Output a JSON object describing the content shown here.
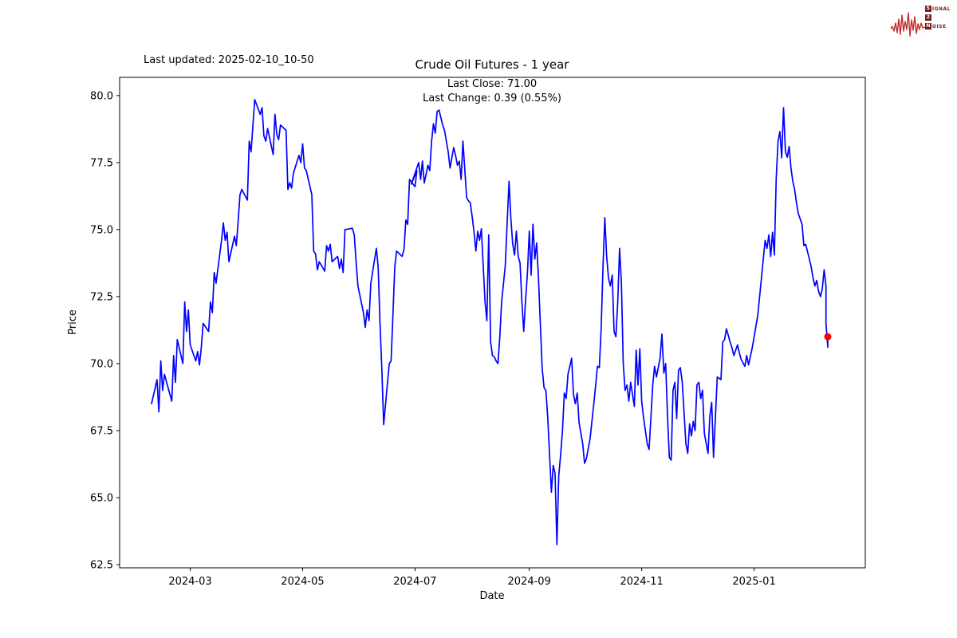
{
  "meta": {
    "last_updated_label": "Last updated: 2025-02-10_10-50"
  },
  "logo": {
    "name": "Signal 2 Noise",
    "line1_initial": "S",
    "line1_rest": "IGNAL",
    "line2_initial": "2",
    "line2_rest": "",
    "line3_initial": "N",
    "line3_rest": "OISE",
    "wave_color": "#c62828",
    "box_color": "#7c1f1f"
  },
  "chart_data": {
    "type": "line",
    "title": "Crude Oil Futures - 1 year",
    "subtitle_close": "Last Close: 71.00",
    "subtitle_change": "Last Change: 0.39 (0.55%)",
    "xlabel": "Date",
    "ylabel": "Price",
    "grid": false,
    "legend": "none",
    "line_color": "#0000ff",
    "marker_color": "#ff0000",
    "ylim": [
      62.38,
      80.68
    ],
    "x_domain": [
      "2024-02-09",
      "2025-02-10"
    ],
    "y_ticks": [
      {
        "value": 62.5,
        "label": "62.5"
      },
      {
        "value": 65.0,
        "label": "65.0"
      },
      {
        "value": 67.5,
        "label": "67.5"
      },
      {
        "value": 70.0,
        "label": "70.0"
      },
      {
        "value": 72.5,
        "label": "72.5"
      },
      {
        "value": 75.0,
        "label": "75.0"
      },
      {
        "value": 77.5,
        "label": "77.5"
      },
      {
        "value": 80.0,
        "label": "80.0"
      }
    ],
    "x_ticks": [
      {
        "date": "2024-03-01",
        "label": "2024-03"
      },
      {
        "date": "2024-05-01",
        "label": "2024-05"
      },
      {
        "date": "2024-07-01",
        "label": "2024-07"
      },
      {
        "date": "2024-09-01",
        "label": "2024-09"
      },
      {
        "date": "2024-11-01",
        "label": "2024-11"
      },
      {
        "date": "2025-01-01",
        "label": "2025-01"
      }
    ],
    "last_point": {
      "date": "2025-02-10",
      "price": 71.0
    },
    "series": [
      {
        "name": "Crude Oil Futures",
        "points": [
          [
            "2024-02-09",
            68.5
          ],
          [
            "2024-02-12",
            69.4
          ],
          [
            "2024-02-13",
            68.2
          ],
          [
            "2024-02-14",
            70.1
          ],
          [
            "2024-02-15",
            69.0
          ],
          [
            "2024-02-16",
            69.6
          ],
          [
            "2024-02-20",
            68.6
          ],
          [
            "2024-02-21",
            70.3
          ],
          [
            "2024-02-22",
            69.3
          ],
          [
            "2024-02-23",
            70.9
          ],
          [
            "2024-02-26",
            70.0
          ],
          [
            "2024-02-27",
            72.3
          ],
          [
            "2024-02-28",
            71.2
          ],
          [
            "2024-02-29",
            72.0
          ],
          [
            "2024-03-01",
            70.7
          ],
          [
            "2024-03-04",
            70.1
          ],
          [
            "2024-03-05",
            70.45
          ],
          [
            "2024-03-06",
            69.95
          ],
          [
            "2024-03-07",
            70.6
          ],
          [
            "2024-03-08",
            71.5
          ],
          [
            "2024-03-11",
            71.2
          ],
          [
            "2024-03-12",
            72.3
          ],
          [
            "2024-03-13",
            71.9
          ],
          [
            "2024-03-14",
            73.4
          ],
          [
            "2024-03-15",
            73.0
          ],
          [
            "2024-03-18",
            74.6
          ],
          [
            "2024-03-19",
            75.25
          ],
          [
            "2024-03-20",
            74.6
          ],
          [
            "2024-03-21",
            74.9
          ],
          [
            "2024-03-22",
            73.8
          ],
          [
            "2024-03-25",
            74.75
          ],
          [
            "2024-03-26",
            74.4
          ],
          [
            "2024-03-27",
            75.3
          ],
          [
            "2024-03-28",
            76.3
          ],
          [
            "2024-03-29",
            76.5
          ],
          [
            "2024-04-01",
            76.1
          ],
          [
            "2024-04-02",
            78.3
          ],
          [
            "2024-04-03",
            77.9
          ],
          [
            "2024-04-05",
            79.85
          ],
          [
            "2024-04-08",
            79.3
          ],
          [
            "2024-04-09",
            79.55
          ],
          [
            "2024-04-10",
            78.5
          ],
          [
            "2024-04-11",
            78.3
          ],
          [
            "2024-04-12",
            78.77
          ],
          [
            "2024-04-15",
            77.8
          ],
          [
            "2024-04-16",
            79.3
          ],
          [
            "2024-04-17",
            78.55
          ],
          [
            "2024-04-18",
            78.36
          ],
          [
            "2024-04-19",
            78.9
          ],
          [
            "2024-04-22",
            78.7
          ],
          [
            "2024-04-23",
            76.5
          ],
          [
            "2024-04-24",
            76.75
          ],
          [
            "2024-04-25",
            76.55
          ],
          [
            "2024-04-26",
            77.1
          ],
          [
            "2024-04-29",
            77.77
          ],
          [
            "2024-04-30",
            77.5
          ],
          [
            "2024-05-01",
            78.2
          ],
          [
            "2024-05-02",
            77.3
          ],
          [
            "2024-05-03",
            77.2
          ],
          [
            "2024-05-06",
            76.3
          ],
          [
            "2024-05-07",
            74.2
          ],
          [
            "2024-05-08",
            74.1
          ],
          [
            "2024-05-09",
            73.5
          ],
          [
            "2024-05-10",
            73.8
          ],
          [
            "2024-05-13",
            73.45
          ],
          [
            "2024-05-14",
            74.4
          ],
          [
            "2024-05-15",
            74.2
          ],
          [
            "2024-05-16",
            74.45
          ],
          [
            "2024-05-17",
            73.8
          ],
          [
            "2024-05-20",
            74.0
          ],
          [
            "2024-05-21",
            73.55
          ],
          [
            "2024-05-22",
            73.9
          ],
          [
            "2024-05-23",
            73.4
          ],
          [
            "2024-05-24",
            75.0
          ],
          [
            "2024-05-28",
            75.05
          ],
          [
            "2024-05-29",
            74.8
          ],
          [
            "2024-05-30",
            73.8
          ],
          [
            "2024-05-31",
            72.9
          ],
          [
            "2024-06-03",
            71.9
          ],
          [
            "2024-06-04",
            71.35
          ],
          [
            "2024-06-05",
            72.0
          ],
          [
            "2024-06-06",
            71.6
          ],
          [
            "2024-06-07",
            73.0
          ],
          [
            "2024-06-10",
            74.3
          ],
          [
            "2024-06-11",
            73.6
          ],
          [
            "2024-06-12",
            71.5
          ],
          [
            "2024-06-13",
            69.8
          ],
          [
            "2024-06-14",
            67.72
          ],
          [
            "2024-06-17",
            70.0
          ],
          [
            "2024-06-18",
            70.1
          ],
          [
            "2024-06-19",
            71.8
          ],
          [
            "2024-06-20",
            73.6
          ],
          [
            "2024-06-21",
            74.2
          ],
          [
            "2024-06-24",
            74.0
          ],
          [
            "2024-06-25",
            74.26
          ],
          [
            "2024-06-26",
            75.36
          ],
          [
            "2024-06-27",
            75.2
          ],
          [
            "2024-06-28",
            76.87
          ],
          [
            "2024-07-01",
            76.6
          ],
          [
            "2024-07-02",
            77.2
          ],
          [
            "2024-06-29",
            76.7
          ]
        ],
        "points_note": "continued in points2 (single series, concatenated in order)"
      }
    ],
    "points2": [
      [
        "2024-07-03",
        77.5
      ],
      [
        "2024-07-04",
        76.87
      ],
      [
        "2024-07-05",
        77.56
      ],
      [
        "2024-07-06",
        76.74
      ],
      [
        "2024-07-08",
        77.4
      ],
      [
        "2024-07-09",
        77.2
      ],
      [
        "2024-07-10",
        78.3
      ],
      [
        "2024-07-11",
        78.95
      ],
      [
        "2024-07-12",
        78.6
      ],
      [
        "2024-07-13",
        79.4
      ],
      [
        "2024-07-14",
        79.46
      ],
      [
        "2024-07-16",
        78.9
      ],
      [
        "2024-07-17",
        78.7
      ],
      [
        "2024-07-19",
        77.9
      ],
      [
        "2024-07-20",
        77.3
      ],
      [
        "2024-07-22",
        78.06
      ],
      [
        "2024-07-23",
        77.76
      ],
      [
        "2024-07-24",
        77.4
      ],
      [
        "2024-07-25",
        77.55
      ],
      [
        "2024-07-26",
        76.87
      ],
      [
        "2024-07-27",
        78.3
      ],
      [
        "2024-07-29",
        76.2
      ],
      [
        "2024-07-30",
        76.07
      ],
      [
        "2024-07-31",
        76.0
      ],
      [
        "2024-08-01",
        75.5
      ],
      [
        "2024-08-02",
        74.9
      ],
      [
        "2024-08-03",
        74.2
      ],
      [
        "2024-08-04",
        74.94
      ],
      [
        "2024-08-05",
        74.6
      ],
      [
        "2024-08-06",
        75.03
      ],
      [
        "2024-08-07",
        73.66
      ],
      [
        "2024-08-08",
        72.3
      ],
      [
        "2024-08-09",
        71.6
      ],
      [
        "2024-08-10",
        74.8
      ],
      [
        "2024-08-11",
        70.8
      ],
      [
        "2024-08-12",
        70.3
      ],
      [
        "2024-08-13",
        70.25
      ],
      [
        "2024-08-14",
        70.1
      ],
      [
        "2024-08-15",
        70.0
      ],
      [
        "2024-08-16",
        71.0
      ],
      [
        "2024-08-17",
        72.3
      ],
      [
        "2024-08-19",
        73.66
      ],
      [
        "2024-08-20",
        75.3
      ],
      [
        "2024-08-21",
        76.8
      ],
      [
        "2024-08-22",
        75.4
      ],
      [
        "2024-08-23",
        74.46
      ],
      [
        "2024-08-24",
        74.05
      ],
      [
        "2024-08-25",
        74.94
      ],
      [
        "2024-08-26",
        74.0
      ],
      [
        "2024-08-27",
        73.75
      ],
      [
        "2024-08-28",
        72.3
      ],
      [
        "2024-08-29",
        71.2
      ],
      [
        "2024-08-30",
        72.4
      ],
      [
        "2024-08-31",
        73.4
      ],
      [
        "2024-09-01",
        74.94
      ],
      [
        "2024-09-02",
        73.3
      ],
      [
        "2024-09-03",
        75.2
      ],
      [
        "2024-09-04",
        73.9
      ],
      [
        "2024-09-05",
        74.5
      ],
      [
        "2024-09-06",
        73.2
      ],
      [
        "2024-09-07",
        71.5
      ],
      [
        "2024-09-08",
        69.8
      ],
      [
        "2024-09-09",
        69.1
      ],
      [
        "2024-09-10",
        69.0
      ],
      [
        "2024-09-11",
        68.0
      ],
      [
        "2024-09-12",
        66.6
      ],
      [
        "2024-09-13",
        65.2
      ],
      [
        "2024-09-14",
        66.2
      ],
      [
        "2024-09-15",
        65.9
      ],
      [
        "2024-09-16",
        63.25
      ],
      [
        "2024-09-17",
        65.8
      ],
      [
        "2024-09-18",
        66.6
      ],
      [
        "2024-09-19",
        67.5
      ],
      [
        "2024-09-20",
        68.9
      ],
      [
        "2024-09-21",
        68.7
      ],
      [
        "2024-09-22",
        69.6
      ],
      [
        "2024-09-23",
        69.9
      ],
      [
        "2024-09-24",
        70.2
      ],
      [
        "2024-09-25",
        68.85
      ],
      [
        "2024-09-26",
        68.5
      ],
      [
        "2024-09-27",
        68.9
      ],
      [
        "2024-09-28",
        67.8
      ],
      [
        "2024-09-30",
        67.0
      ],
      [
        "2024-10-01",
        66.28
      ],
      [
        "2024-10-02",
        66.45
      ],
      [
        "2024-10-04",
        67.2
      ],
      [
        "2024-10-06",
        68.5
      ],
      [
        "2024-10-08",
        69.9
      ],
      [
        "2024-10-09",
        69.85
      ],
      [
        "2024-10-10",
        71.3
      ],
      [
        "2024-10-11",
        73.6
      ],
      [
        "2024-10-12",
        75.45
      ],
      [
        "2024-10-13",
        74.0
      ],
      [
        "2024-10-14",
        73.2
      ],
      [
        "2024-10-15",
        72.9
      ],
      [
        "2024-10-16",
        73.3
      ],
      [
        "2024-10-17",
        71.2
      ],
      [
        "2024-10-18",
        71.0
      ],
      [
        "2024-10-19",
        72.3
      ],
      [
        "2024-10-20",
        74.3
      ],
      [
        "2024-10-21",
        73.0
      ],
      [
        "2024-10-22",
        70.0
      ],
      [
        "2024-10-23",
        69.0
      ],
      [
        "2024-10-24",
        69.2
      ],
      [
        "2024-10-25",
        68.6
      ],
      [
        "2024-10-26",
        69.3
      ],
      [
        "2024-10-28",
        68.4
      ],
      [
        "2024-10-29",
        70.5
      ],
      [
        "2024-10-30",
        69.2
      ],
      [
        "2024-10-31",
        70.55
      ],
      [
        "2024-11-01",
        68.6
      ],
      [
        "2024-11-02",
        68.0
      ],
      [
        "2024-11-04",
        67.0
      ],
      [
        "2024-11-05",
        66.8
      ],
      [
        "2024-11-07",
        69.2
      ],
      [
        "2024-11-08",
        69.9
      ],
      [
        "2024-11-09",
        69.5
      ],
      [
        "2024-11-11",
        70.2
      ],
      [
        "2024-11-12",
        71.1
      ],
      [
        "2024-11-13",
        69.65
      ],
      [
        "2024-11-14",
        70.0
      ],
      [
        "2024-11-15",
        68.05
      ],
      [
        "2024-11-16",
        66.5
      ],
      [
        "2024-11-17",
        66.4
      ],
      [
        "2024-11-18",
        69.0
      ],
      [
        "2024-11-19",
        69.3
      ],
      [
        "2024-11-20",
        67.95
      ],
      [
        "2024-11-21",
        69.75
      ],
      [
        "2024-11-22",
        69.85
      ],
      [
        "2024-11-23",
        69.3
      ],
      [
        "2024-11-25",
        67.0
      ],
      [
        "2024-11-26",
        66.65
      ],
      [
        "2024-11-27",
        67.75
      ],
      [
        "2024-11-28",
        67.3
      ],
      [
        "2024-11-29",
        67.85
      ],
      [
        "2024-11-30",
        67.5
      ],
      [
        "2024-12-01",
        69.2
      ],
      [
        "2024-12-02",
        69.3
      ],
      [
        "2024-12-03",
        68.7
      ],
      [
        "2024-12-04",
        69.0
      ],
      [
        "2024-12-05",
        67.4
      ],
      [
        "2024-12-07",
        66.65
      ],
      [
        "2024-12-08",
        68.05
      ],
      [
        "2024-12-09",
        68.55
      ],
      [
        "2024-12-10",
        66.5
      ],
      [
        "2024-12-12",
        69.5
      ],
      [
        "2024-12-14",
        69.4
      ],
      [
        "2024-12-15",
        70.8
      ],
      [
        "2024-12-16",
        70.9
      ],
      [
        "2024-12-17",
        71.3
      ],
      [
        "2024-12-19",
        70.8
      ],
      [
        "2024-12-20",
        70.6
      ],
      [
        "2024-12-21",
        70.3
      ],
      [
        "2024-12-23",
        70.7
      ],
      [
        "2024-12-24",
        70.4
      ],
      [
        "2024-12-25",
        70.15
      ],
      [
        "2024-12-27",
        69.9
      ],
      [
        "2024-12-28",
        70.3
      ],
      [
        "2024-12-29",
        69.95
      ],
      [
        "2024-12-31",
        70.6
      ],
      [
        "2025-01-02",
        71.4
      ],
      [
        "2025-01-03",
        71.8
      ],
      [
        "2025-01-05",
        73.2
      ],
      [
        "2025-01-07",
        74.6
      ],
      [
        "2025-01-08",
        74.3
      ],
      [
        "2025-01-09",
        74.8
      ],
      [
        "2025-01-10",
        74.0
      ],
      [
        "2025-01-11",
        74.9
      ],
      [
        "2025-01-12",
        74.05
      ],
      [
        "2025-01-13",
        76.9
      ],
      [
        "2025-01-14",
        78.3
      ],
      [
        "2025-01-15",
        78.66
      ],
      [
        "2025-01-16",
        77.68
      ],
      [
        "2025-01-17",
        79.55
      ],
      [
        "2025-01-18",
        77.9
      ],
      [
        "2025-01-19",
        77.7
      ],
      [
        "2025-01-20",
        78.1
      ],
      [
        "2025-01-21",
        77.3
      ],
      [
        "2025-01-22",
        76.8
      ],
      [
        "2025-01-23",
        76.5
      ],
      [
        "2025-01-24",
        76.0
      ],
      [
        "2025-01-25",
        75.6
      ],
      [
        "2025-01-27",
        75.2
      ],
      [
        "2025-01-28",
        74.4
      ],
      [
        "2025-01-29",
        74.45
      ],
      [
        "2025-01-31",
        73.9
      ],
      [
        "2025-02-01",
        73.6
      ],
      [
        "2025-02-02",
        73.2
      ],
      [
        "2025-02-03",
        72.9
      ],
      [
        "2025-02-04",
        73.1
      ],
      [
        "2025-02-05",
        72.7
      ],
      [
        "2025-02-06",
        72.5
      ],
      [
        "2025-02-07",
        72.8
      ],
      [
        "2025-02-08",
        73.5
      ],
      [
        "2025-02-09",
        72.9
      ],
      [
        "2025-02-09",
        71.5
      ],
      [
        "2025-02-10",
        70.61
      ],
      [
        "2025-02-10",
        71.0
      ]
    ]
  }
}
